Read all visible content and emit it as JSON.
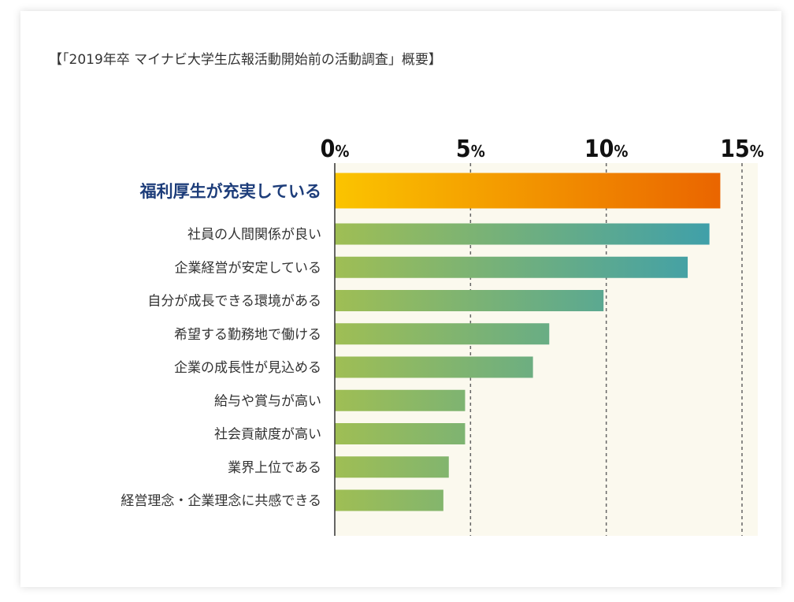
{
  "title": "【「2019年卒 マイナビ大学生広報活動開始前の活動調査」概要】",
  "chart_data": {
    "type": "bar",
    "orientation": "horizontal",
    "title": "【「2019年卒 マイナビ大学生広報活動開始前の活動調査」概要】",
    "xlabel": "",
    "ylabel": "",
    "xlim": [
      0,
      15
    ],
    "ticks": [
      0,
      5,
      10,
      15
    ],
    "tick_labels": [
      "0%",
      "5%",
      "10%",
      "15%"
    ],
    "grid": true,
    "categories": [
      "福利厚生が充実している",
      "社員の人間関係が良い",
      "企業経営が安定している",
      "自分が成長できる環境がある",
      "希望する勤務地で働ける",
      "企業の成長性が見込める",
      "給与や賞与が高い",
      "社会貢献度が高い",
      "業界上位である",
      "経営理念・企業理念に共感できる"
    ],
    "values": [
      14.2,
      13.8,
      13.0,
      9.9,
      7.9,
      7.3,
      4.8,
      4.8,
      4.2,
      4.0
    ],
    "highlight_index": 0,
    "colors": {
      "highlight_start": "#fbc400",
      "highlight_end": "#ea6500",
      "bar_start": "#9fbe54",
      "bar_end": "#40a0a9",
      "plot_bg": "#fbf9ee",
      "highlight_label": "#1d3d7a"
    }
  }
}
